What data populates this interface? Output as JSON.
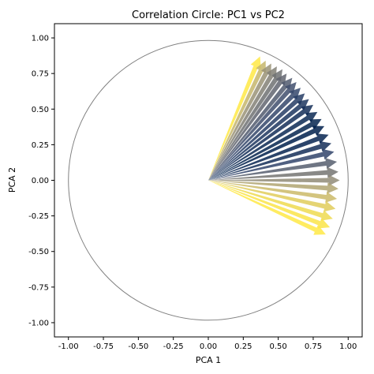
{
  "chart_data": {
    "type": "scatter",
    "title": "Correlation Circle: PC1 vs PC2",
    "xlabel": "PCA 1",
    "ylabel": "PCA 2",
    "xlim": [
      -1.1,
      1.1
    ],
    "ylim": [
      -1.1,
      1.1
    ],
    "x_ticks": [
      "-1.00",
      "-0.75",
      "-0.50",
      "-0.25",
      "0.00",
      "0.25",
      "0.50",
      "0.75",
      "1.00"
    ],
    "y_ticks": [
      "-1.00",
      "-0.75",
      "-0.50",
      "-0.25",
      "0.00",
      "0.25",
      "0.50",
      "0.75",
      "1.00"
    ],
    "grid": false,
    "circle_radius": 1.0,
    "circle_color": "#808080",
    "colormap": "cividis",
    "colormap_stops": [
      "#00204c",
      "#31446b",
      "#666970",
      "#958f78",
      "#cbba69",
      "#ffe945"
    ],
    "arrows": [
      {
        "x": 0.37,
        "y": 0.87,
        "c": 1.0
      },
      {
        "x": 0.41,
        "y": 0.84,
        "c": 0.78
      },
      {
        "x": 0.45,
        "y": 0.82,
        "c": 0.62
      },
      {
        "x": 0.49,
        "y": 0.8,
        "c": 0.52
      },
      {
        "x": 0.53,
        "y": 0.78,
        "c": 0.44
      },
      {
        "x": 0.56,
        "y": 0.75,
        "c": 0.38
      },
      {
        "x": 0.6,
        "y": 0.72,
        "c": 0.32
      },
      {
        "x": 0.63,
        "y": 0.69,
        "c": 0.26
      },
      {
        "x": 0.66,
        "y": 0.65,
        "c": 0.21
      },
      {
        "x": 0.69,
        "y": 0.61,
        "c": 0.16
      },
      {
        "x": 0.72,
        "y": 0.57,
        "c": 0.12
      },
      {
        "x": 0.75,
        "y": 0.53,
        "c": 0.08
      },
      {
        "x": 0.78,
        "y": 0.48,
        "c": 0.05
      },
      {
        "x": 0.81,
        "y": 0.43,
        "c": 0.02
      },
      {
        "x": 0.83,
        "y": 0.38,
        "c": 0.0
      },
      {
        "x": 0.86,
        "y": 0.32,
        "c": 0.03
      },
      {
        "x": 0.88,
        "y": 0.26,
        "c": 0.08
      },
      {
        "x": 0.9,
        "y": 0.2,
        "c": 0.2
      },
      {
        "x": 0.92,
        "y": 0.13,
        "c": 0.34
      },
      {
        "x": 0.93,
        "y": 0.06,
        "c": 0.46
      },
      {
        "x": 0.94,
        "y": 0.0,
        "c": 0.58
      },
      {
        "x": 0.93,
        "y": -0.06,
        "c": 0.7
      },
      {
        "x": 0.92,
        "y": -0.13,
        "c": 0.8
      },
      {
        "x": 0.91,
        "y": -0.2,
        "c": 0.88
      },
      {
        "x": 0.89,
        "y": -0.27,
        "c": 0.94
      },
      {
        "x": 0.87,
        "y": -0.33,
        "c": 0.98
      },
      {
        "x": 0.84,
        "y": -0.38,
        "c": 1.0
      }
    ]
  }
}
